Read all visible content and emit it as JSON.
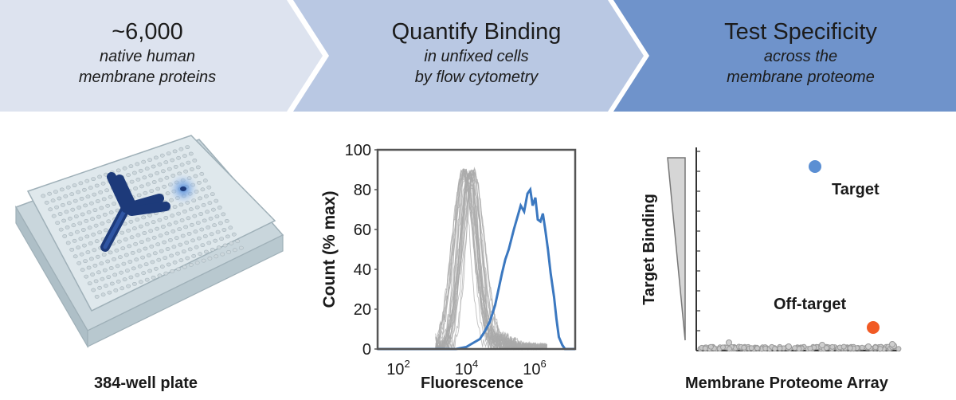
{
  "steps": [
    {
      "title": "~6,000",
      "sub1": "native human",
      "sub2": "membrane proteins",
      "color": "#dde3ef"
    },
    {
      "title": "Quantify Binding",
      "sub1": "in unfixed cells",
      "sub2": "by flow cytometry",
      "color": "#b9c8e3"
    },
    {
      "title": "Test Specificity",
      "sub1": "across the",
      "sub2": "membrane proteome",
      "color": "#6f93cb"
    }
  ],
  "plate": {
    "caption": "384-well plate",
    "rows": 16,
    "cols": 24,
    "antibody_color": "#1d3a7a",
    "glow_color": "#4a86d6"
  },
  "histogram": {
    "caption": "Fluorescence",
    "ylabel": "Count (% max)",
    "yticks": [
      "0",
      "20",
      "40",
      "60",
      "80",
      "100"
    ],
    "xticks": [
      {
        "base": "10",
        "exp": "2",
        "value": 2
      },
      {
        "base": "10",
        "exp": "4",
        "value": 4
      },
      {
        "base": "10",
        "exp": "6",
        "value": 6
      }
    ],
    "xrange_log10": [
      1.3,
      7.1
    ],
    "yrange": [
      0,
      100
    ],
    "blue_color": "#3b78c0",
    "grey_color": "#aaaaaa"
  },
  "scatter": {
    "caption": "Membrane Proteome Array",
    "ylabel": "Target Binding",
    "target_label": "Target",
    "offtarget_label": "Off-target",
    "target_color": "#5b8fd3",
    "offtarget_color": "#f15a24",
    "point_color": "#9a9a9a"
  }
}
